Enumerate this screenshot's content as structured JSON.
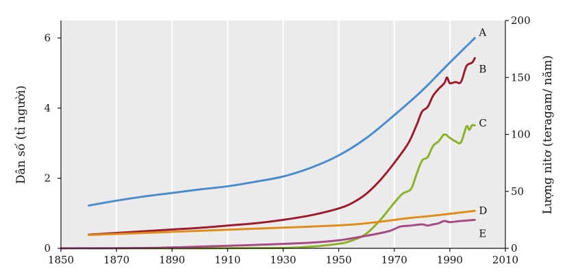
{
  "chart_data": {
    "type": "line",
    "title": "",
    "xlabel": "",
    "ylabel_left": "Dân số (tỉ người)",
    "ylabel_right": "Lượng nitơ (teragam/ năm)",
    "xlim": [
      1850,
      2010
    ],
    "ylim_left": [
      0,
      6.5
    ],
    "ylim_right": [
      0,
      200
    ],
    "x_ticks": [
      1850,
      1870,
      1890,
      1910,
      1930,
      1950,
      1970,
      1990,
      2010
    ],
    "x_tick_labels": [
      "1850",
      "1870",
      "1890",
      "1910",
      "1930",
      "1950",
      "1970",
      "1990",
      "2010"
    ],
    "y_left_ticks": [
      0,
      2,
      4,
      6
    ],
    "y_left_tick_labels": [
      "0",
      "2",
      "4",
      "6"
    ],
    "y_right_ticks": [
      0,
      50,
      100,
      150,
      200
    ],
    "y_right_tick_labels": [
      "0",
      "50",
      "100",
      "150",
      "200"
    ],
    "grid": true,
    "background": "#ebebeb",
    "series": [
      {
        "name": "A",
        "axis": "left",
        "color": "#4a8ccb",
        "x": [
          1860,
          1870,
          1880,
          1890,
          1900,
          1910,
          1920,
          1930,
          1940,
          1950,
          1960,
          1970,
          1980,
          1990,
          1999
        ],
        "values": [
          1.22,
          1.36,
          1.48,
          1.58,
          1.68,
          1.77,
          1.9,
          2.05,
          2.3,
          2.65,
          3.15,
          3.8,
          4.5,
          5.3,
          6.0
        ]
      },
      {
        "name": "B",
        "axis": "right",
        "color": "#9c1b2e",
        "x": [
          1860,
          1870,
          1880,
          1890,
          1900,
          1910,
          1920,
          1930,
          1940,
          1950,
          1955,
          1960,
          1965,
          1970,
          1975,
          1978,
          1980,
          1982,
          1984,
          1986,
          1988,
          1989,
          1990,
          1992,
          1994,
          1996,
          1998,
          1999
        ],
        "values": [
          12,
          13.5,
          15,
          16.5,
          18,
          20,
          22,
          25,
          29,
          35,
          40,
          48,
          60,
          75,
          92,
          108,
          120,
          124,
          134,
          140,
          145,
          150,
          145,
          146,
          146,
          160,
          163,
          167
        ]
      },
      {
        "name": "C",
        "axis": "right",
        "color": "#8cb026",
        "x": [
          1860,
          1900,
          1930,
          1940,
          1950,
          1955,
          1960,
          1965,
          1970,
          1973,
          1976,
          1978,
          1980,
          1982,
          1984,
          1986,
          1988,
          1990,
          1992,
          1994,
          1996,
          1997,
          1998,
          1999
        ],
        "values": [
          0,
          0,
          0.3,
          1.5,
          4,
          7,
          13,
          25,
          40,
          48,
          52,
          65,
          77,
          80,
          90,
          94,
          100,
          97,
          94,
          93,
          107,
          104,
          108,
          108
        ]
      },
      {
        "name": "D",
        "axis": "left",
        "color": "#e08c19",
        "x": [
          1860,
          1880,
          1900,
          1920,
          1940,
          1955,
          1965,
          1975,
          1985,
          1999
        ],
        "values": [
          0.38,
          0.44,
          0.5,
          0.56,
          0.62,
          0.68,
          0.76,
          0.86,
          0.94,
          1.07
        ]
      },
      {
        "name": "E",
        "axis": "right",
        "color": "#a64a82",
        "x": [
          1850,
          1880,
          1900,
          1920,
          1940,
          1950,
          1960,
          1968,
          1972,
          1976,
          1980,
          1982,
          1984,
          1986,
          1988,
          1990,
          1994,
          1999
        ],
        "values": [
          0,
          0.3,
          1.5,
          3,
          5,
          7,
          11,
          15,
          19,
          20,
          21,
          20,
          21,
          22,
          24,
          23,
          24,
          25
        ]
      }
    ]
  }
}
